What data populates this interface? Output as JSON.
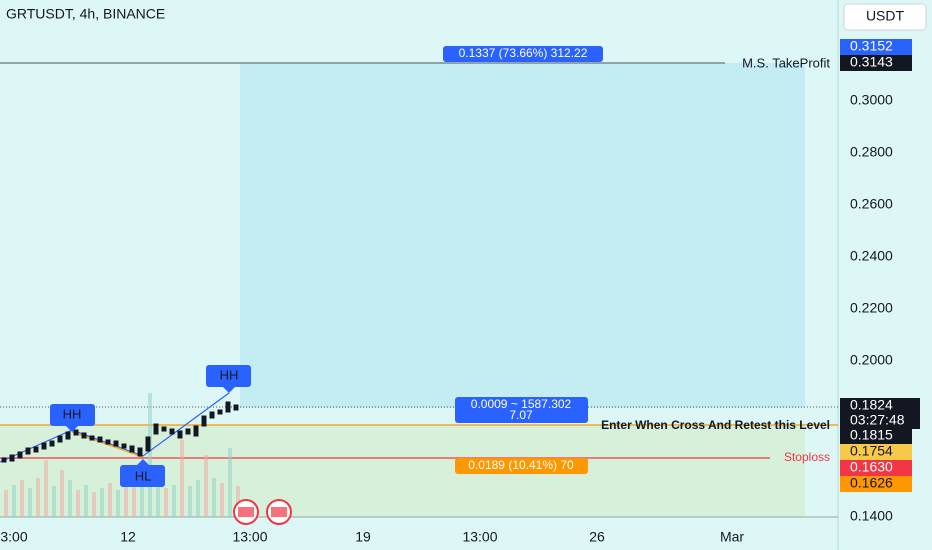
{
  "header": {
    "symbol": "GRTUSDT, 4h, BINANCE",
    "currency_button": "USDT"
  },
  "price_axis": {
    "labels": [
      "0.3000",
      "0.2800",
      "0.2600",
      "0.2400",
      "0.2200",
      "0.2000",
      "0.1400"
    ],
    "tags": [
      "0.3152",
      "0.3143",
      "0.1824",
      "03:27:48",
      "0.1815",
      "0.1754",
      "0.1630",
      "0.1626"
    ]
  },
  "time_axis": [
    "3:00",
    "12",
    "13:00",
    "19",
    "13:00",
    "26",
    "Mar"
  ],
  "annotations": {
    "target_box": "0.1337 (73.66%) 312.22",
    "take_profit": "M.S. TakeProfit",
    "entry_box": [
      "0.0009 ~ 1587.302",
      "7.07"
    ],
    "entry_note": "Enter When Cross And Retest this Level",
    "stoploss": "Stoploss",
    "stop_box": "0.0189 (10.41%) 70"
  },
  "pivots": [
    "HH",
    "HH",
    "HL"
  ]
}
